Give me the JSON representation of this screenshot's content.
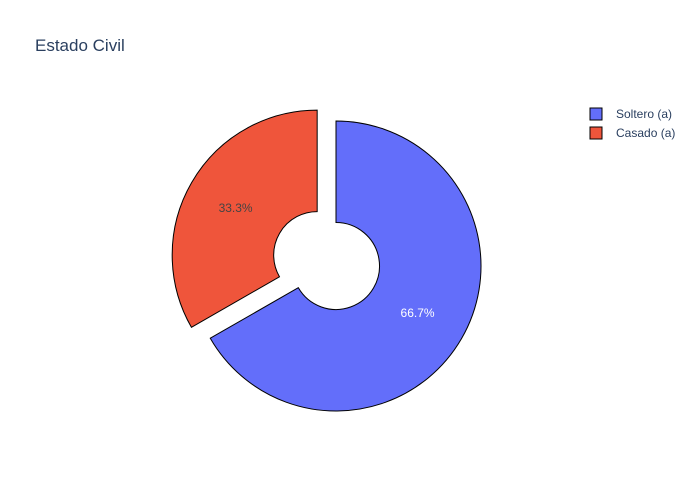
{
  "chart_data": {
    "type": "pie",
    "title": "Estado Civil",
    "hole": 0.3,
    "slices": [
      {
        "label": "Soltero (a)",
        "value": 66.7,
        "text": "66.7%",
        "color": "#636efa",
        "pull": 0,
        "label_color": "#ffffff"
      },
      {
        "label": "Casado (a)",
        "value": 33.3,
        "text": "33.3%",
        "color": "#ef553b",
        "pull": 0.15,
        "label_color": "#444444"
      }
    ],
    "legend_position": "top-right",
    "slice_outline_color": "#000000"
  }
}
